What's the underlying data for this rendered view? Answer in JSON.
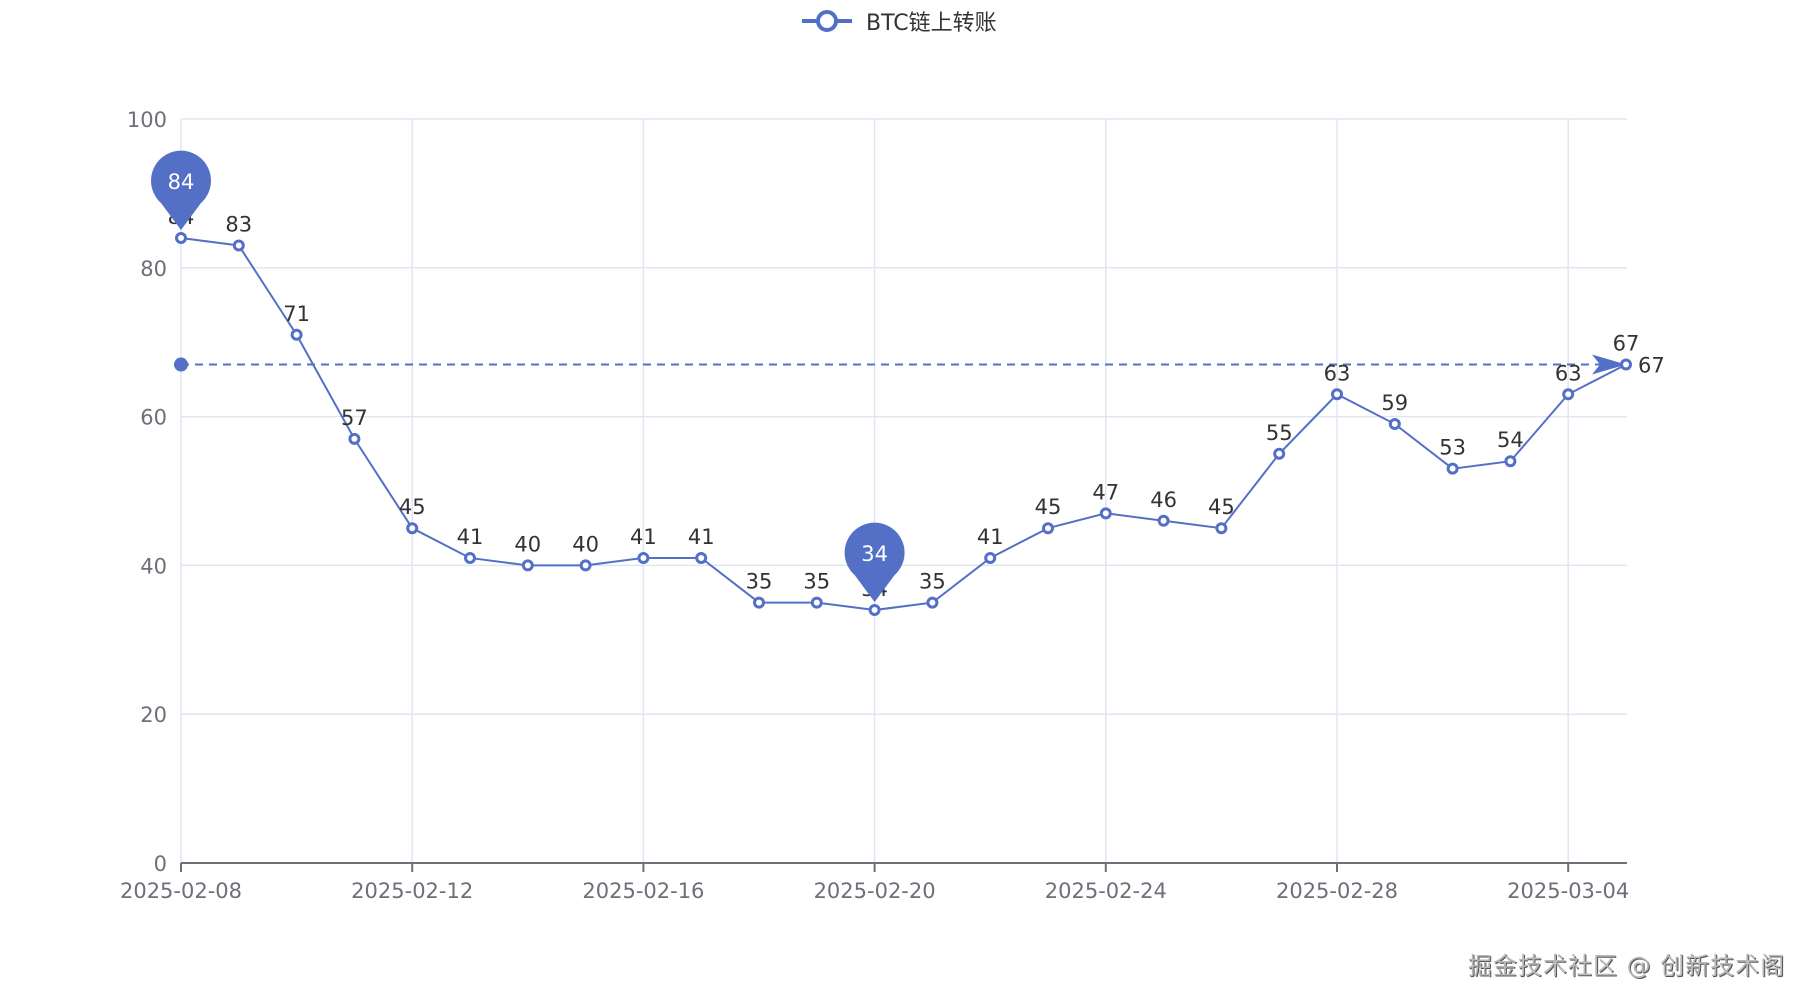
{
  "legend": {
    "label": "BTC链上转账",
    "color": "#5470c6",
    "icon": "line-circle-icon"
  },
  "watermark": "掘金技术社区 @ 创新技术阁",
  "colors": {
    "series": "#5470c6",
    "grid": "#e0e6f1",
    "axis": "#6e7079",
    "label": "#333333"
  },
  "chart_data": {
    "type": "line",
    "title": "",
    "xlabel": "",
    "ylabel": "",
    "ylim": [
      0,
      100
    ],
    "yticks": [
      0,
      20,
      40,
      60,
      80,
      100
    ],
    "grid": true,
    "legend_position": "top-center",
    "x": [
      "2025-02-08",
      "2025-02-09",
      "2025-02-10",
      "2025-02-11",
      "2025-02-12",
      "2025-02-13",
      "2025-02-14",
      "2025-02-15",
      "2025-02-16",
      "2025-02-17",
      "2025-02-18",
      "2025-02-19",
      "2025-02-20",
      "2025-02-21",
      "2025-02-22",
      "2025-02-23",
      "2025-02-24",
      "2025-02-25",
      "2025-02-26",
      "2025-02-27",
      "2025-02-28",
      "2025-03-01",
      "2025-03-02",
      "2025-03-03",
      "2025-03-04",
      "2025-03-05"
    ],
    "xtick_labels": [
      "2025-02-08",
      "2025-02-12",
      "2025-02-16",
      "2025-02-20",
      "2025-02-24",
      "2025-02-28",
      "2025-03-04"
    ],
    "series": [
      {
        "name": "BTC链上转账",
        "values": [
          84,
          83,
          71,
          57,
          45,
          41,
          40,
          40,
          41,
          41,
          35,
          35,
          34,
          35,
          41,
          45,
          47,
          46,
          45,
          55,
          63,
          59,
          53,
          54,
          63,
          67
        ]
      }
    ],
    "annotations": {
      "mark_points": [
        {
          "type": "max",
          "x": "2025-02-08",
          "value": 84,
          "label": "84"
        },
        {
          "type": "min",
          "x": "2025-02-20",
          "value": 34,
          "label": "34"
        }
      ],
      "mark_line": {
        "from": [
          "2025-02-08",
          67
        ],
        "to": [
          "2025-03-05",
          67
        ],
        "label": "67",
        "style": "dashed-arrow"
      }
    }
  }
}
